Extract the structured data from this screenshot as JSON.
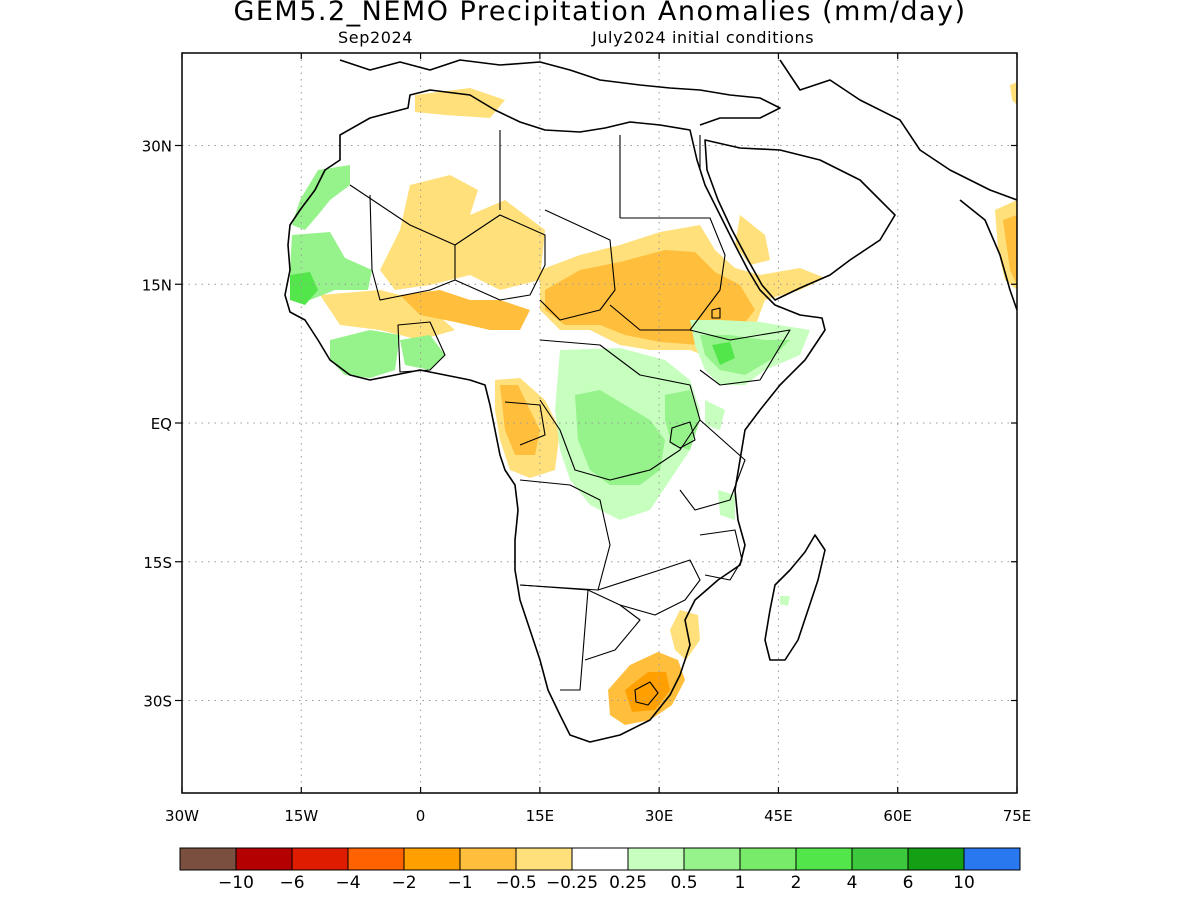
{
  "title": "GEM5.2_NEMO Precipitation Anomalies (mm/day)",
  "subtitle_left": "Sep2024",
  "subtitle_right": "July2024 initial conditions",
  "map": {
    "lon_range": [
      -30,
      75
    ],
    "lat_range": [
      -40,
      40
    ],
    "grid": "dotted",
    "x_ticks": [
      {
        "value": -30,
        "label": "30W"
      },
      {
        "value": -15,
        "label": "15W"
      },
      {
        "value": 0,
        "label": "0"
      },
      {
        "value": 15,
        "label": "15E"
      },
      {
        "value": 30,
        "label": "30E"
      },
      {
        "value": 45,
        "label": "45E"
      },
      {
        "value": 60,
        "label": "60E"
      },
      {
        "value": 75,
        "label": "75E"
      }
    ],
    "y_ticks": [
      {
        "value": 30,
        "label": "30N"
      },
      {
        "value": 15,
        "label": "15N"
      },
      {
        "value": 0,
        "label": "EQ"
      },
      {
        "value": -15,
        "label": "15S"
      },
      {
        "value": -30,
        "label": "30S"
      }
    ]
  },
  "colorbar": {
    "colors": [
      "#7a4f40",
      "#b40000",
      "#e01c00",
      "#ff6200",
      "#ffa000",
      "#ffbe3c",
      "#ffe07a",
      "#ffffff",
      "#c6ffbe",
      "#96f28a",
      "#78ec6a",
      "#52e64a",
      "#3cc83c",
      "#14a014",
      "#2a78f0"
    ],
    "labels": [
      "-10",
      "-6",
      "-4",
      "-2",
      "-1",
      "-0.5",
      "-0.25",
      "0.25",
      "0.5",
      "1",
      "2",
      "4",
      "6",
      "10"
    ]
  }
}
